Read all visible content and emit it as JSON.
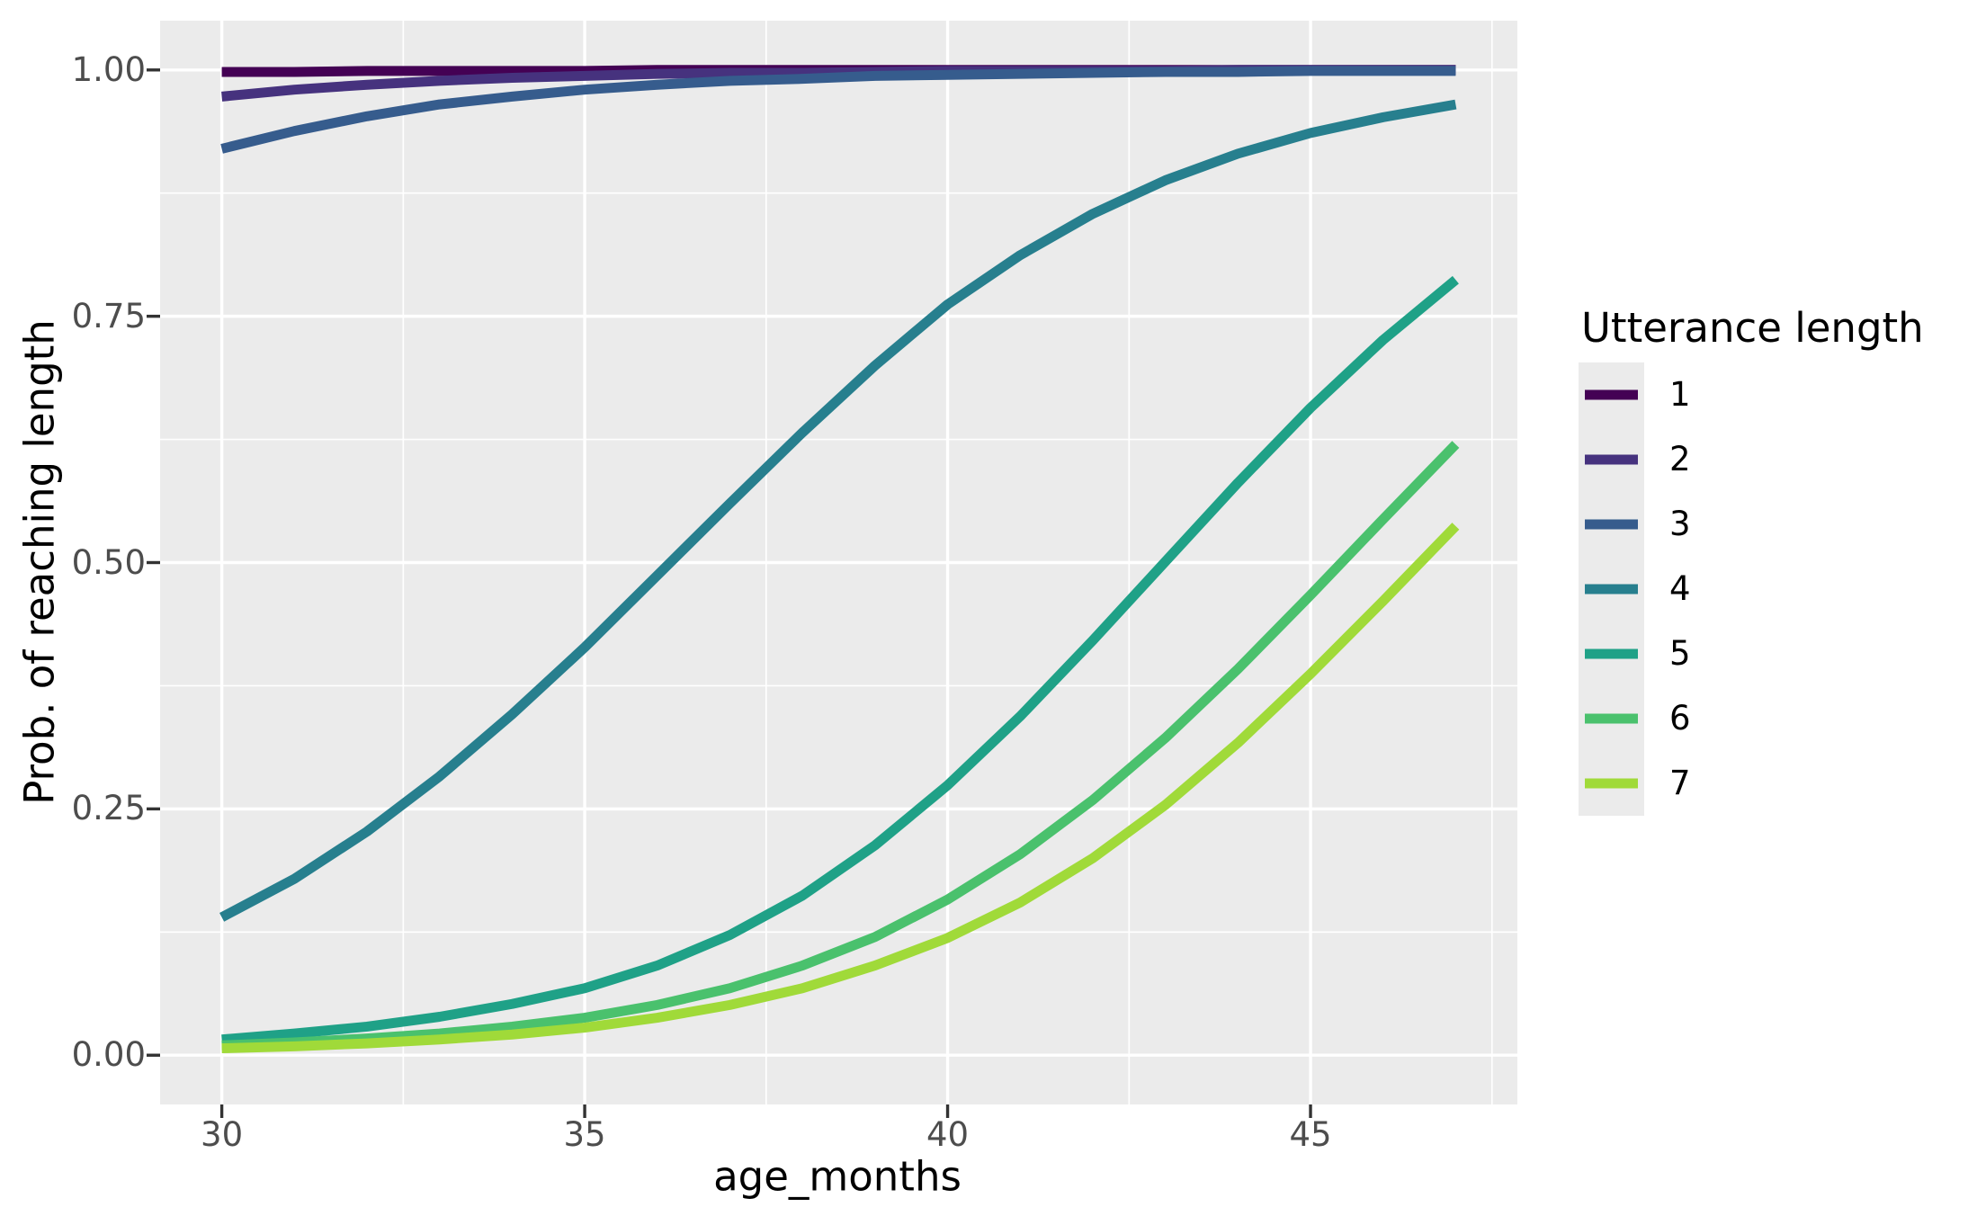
{
  "figure": {
    "background": "#FFFFFF",
    "panel_background": "#EBEBEB",
    "grid_color": "#FFFFFF",
    "tick_mark_color": "#333333",
    "axis_text_color": "#4D4D4D",
    "title_text_color": "#000000"
  },
  "chart_data": {
    "type": "line",
    "title": "",
    "xlabel": "age_months",
    "ylabel": "Prob. of reaching length",
    "legend_title": "Utterance length",
    "legend_position": "right",
    "grid": true,
    "xlim": [
      29.15,
      47.85
    ],
    "ylim": [
      -0.05,
      1.05
    ],
    "x_ticks": {
      "values": [
        30,
        35,
        40,
        45
      ],
      "labels": [
        "30",
        "35",
        "40",
        "45"
      ],
      "minor": [
        32.5,
        37.5,
        42.5,
        47.5
      ]
    },
    "y_ticks": {
      "values": [
        0,
        0.25,
        0.5,
        0.75,
        1
      ],
      "labels": [
        "0.00",
        "0.25",
        "0.50",
        "0.75",
        "1.00"
      ],
      "minor": [
        0.125,
        0.375,
        0.625,
        0.875
      ]
    },
    "x": [
      30,
      31,
      32,
      33,
      34,
      35,
      36,
      37,
      38,
      39,
      40,
      41,
      42,
      43,
      44,
      45,
      46,
      47
    ],
    "series": [
      {
        "name": "1",
        "color": "#440154",
        "values": [
          0.998,
          0.998,
          0.999,
          0.999,
          0.999,
          0.999,
          1.0,
          1.0,
          1.0,
          1.0,
          1.0,
          1.0,
          1.0,
          1.0,
          1.0,
          1.0,
          1.0,
          1.0
        ]
      },
      {
        "name": "2",
        "color": "#46327E",
        "values": [
          0.973,
          0.98,
          0.985,
          0.989,
          0.992,
          0.994,
          0.996,
          0.997,
          0.997,
          0.998,
          0.999,
          0.999,
          0.999,
          0.999,
          1.0,
          1.0,
          1.0,
          1.0
        ]
      },
      {
        "name": "3",
        "color": "#365C8D",
        "values": [
          0.92,
          0.938,
          0.953,
          0.965,
          0.973,
          0.98,
          0.985,
          0.989,
          0.991,
          0.994,
          0.995,
          0.996,
          0.997,
          0.998,
          0.998,
          0.999,
          0.999,
          0.999
        ]
      },
      {
        "name": "4",
        "color": "#277F8E",
        "values": [
          0.14,
          0.179,
          0.227,
          0.283,
          0.346,
          0.414,
          0.487,
          0.56,
          0.632,
          0.7,
          0.762,
          0.812,
          0.854,
          0.888,
          0.915,
          0.936,
          0.952,
          0.965
        ]
      },
      {
        "name": "5",
        "color": "#1FA187",
        "values": [
          0.016,
          0.022,
          0.029,
          0.039,
          0.052,
          0.068,
          0.091,
          0.122,
          0.162,
          0.213,
          0.274,
          0.344,
          0.421,
          0.501,
          0.581,
          0.657,
          0.726,
          0.787
        ]
      },
      {
        "name": "6",
        "color": "#4AC16D",
        "values": [
          0.01,
          0.013,
          0.017,
          0.022,
          0.029,
          0.038,
          0.051,
          0.068,
          0.091,
          0.12,
          0.158,
          0.204,
          0.259,
          0.322,
          0.392,
          0.467,
          0.544,
          0.62
        ]
      },
      {
        "name": "7",
        "color": "#A0DA39",
        "values": [
          0.007,
          0.009,
          0.012,
          0.016,
          0.021,
          0.028,
          0.038,
          0.051,
          0.068,
          0.091,
          0.119,
          0.155,
          0.2,
          0.254,
          0.317,
          0.387,
          0.461,
          0.537
        ]
      }
    ]
  }
}
